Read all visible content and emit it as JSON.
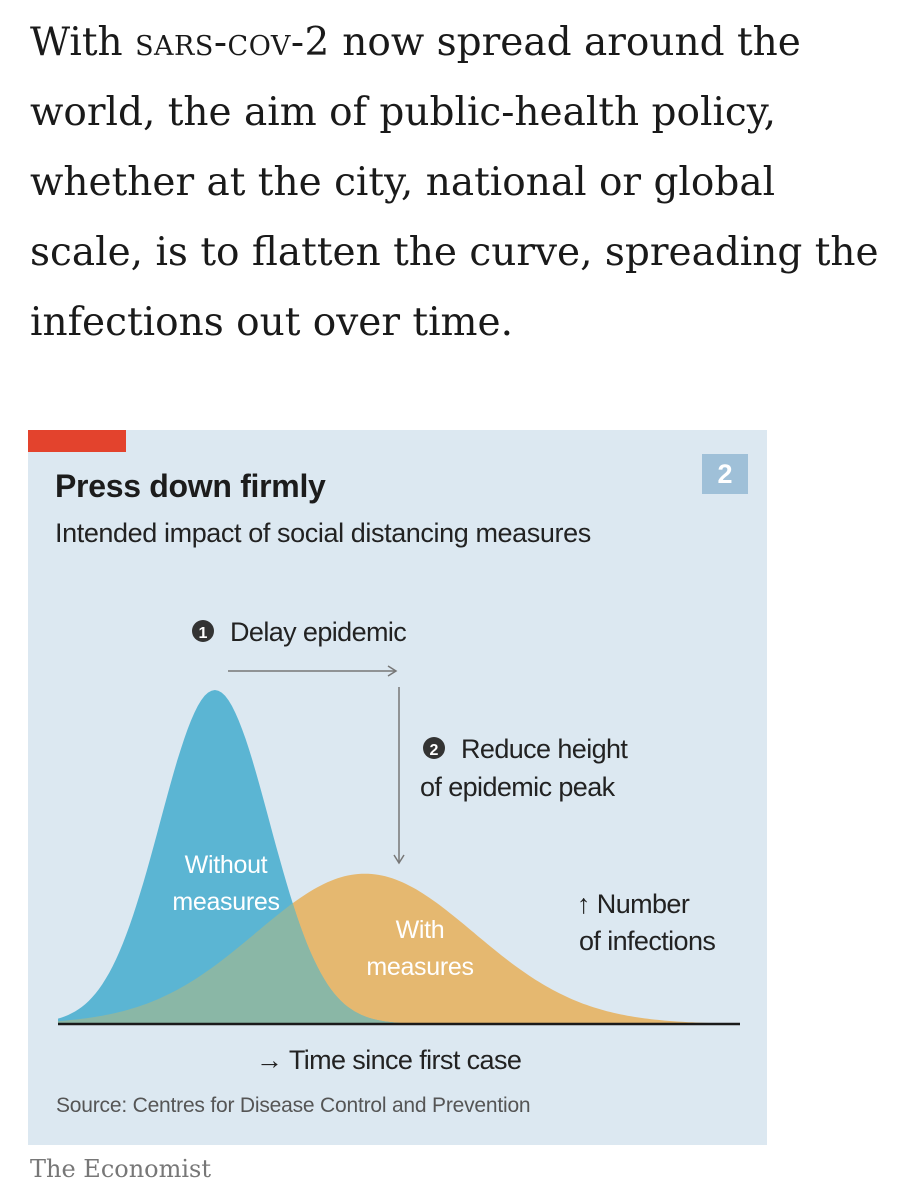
{
  "article": {
    "text_before": "With ",
    "virus_name": "sars-cov-2",
    "text_after": " now spread around the world, the aim of public-health policy, whether at the city, national or global scale, is to flatten the curve, spreading the infections out over time."
  },
  "chart_data": {
    "type": "area",
    "title": "Press down firmly",
    "subtitle": "Intended impact of social distancing measures",
    "chart_number": "2",
    "x_axis_label": "→ Time since first case",
    "y_axis_label": [
      "↑ Number",
      "of infections"
    ],
    "series": [
      {
        "name": "Without measures",
        "label_lines": [
          "Without",
          "measures"
        ],
        "color": "#5bb5d3",
        "shape": "gaussian",
        "peak_time": 23,
        "peak_height": 100,
        "spread": 8
      },
      {
        "name": "With measures",
        "label_lines": [
          "With",
          "measures"
        ],
        "color": "#e5b870",
        "shape": "gaussian",
        "peak_time": 45,
        "peak_height": 45,
        "spread": 16
      }
    ],
    "x_range": [
      0,
      100
    ],
    "y_range": [
      0,
      100
    ],
    "annotations": [
      {
        "number": "1",
        "text_lines": [
          "Delay epidemic"
        ]
      },
      {
        "number": "2",
        "text_lines": [
          "Reduce height",
          "of epidemic peak"
        ]
      }
    ],
    "source": "Source: Centres for Disease Control and Prevention"
  },
  "brand": "The Economist",
  "colors": {
    "card_background": "#dce8f1",
    "accent_red": "#e3432d",
    "without_fill": "#5bb5d3",
    "with_fill": "#e5b870",
    "overlap_fill": "#8ab7a6",
    "annotation_line": "#777777"
  }
}
